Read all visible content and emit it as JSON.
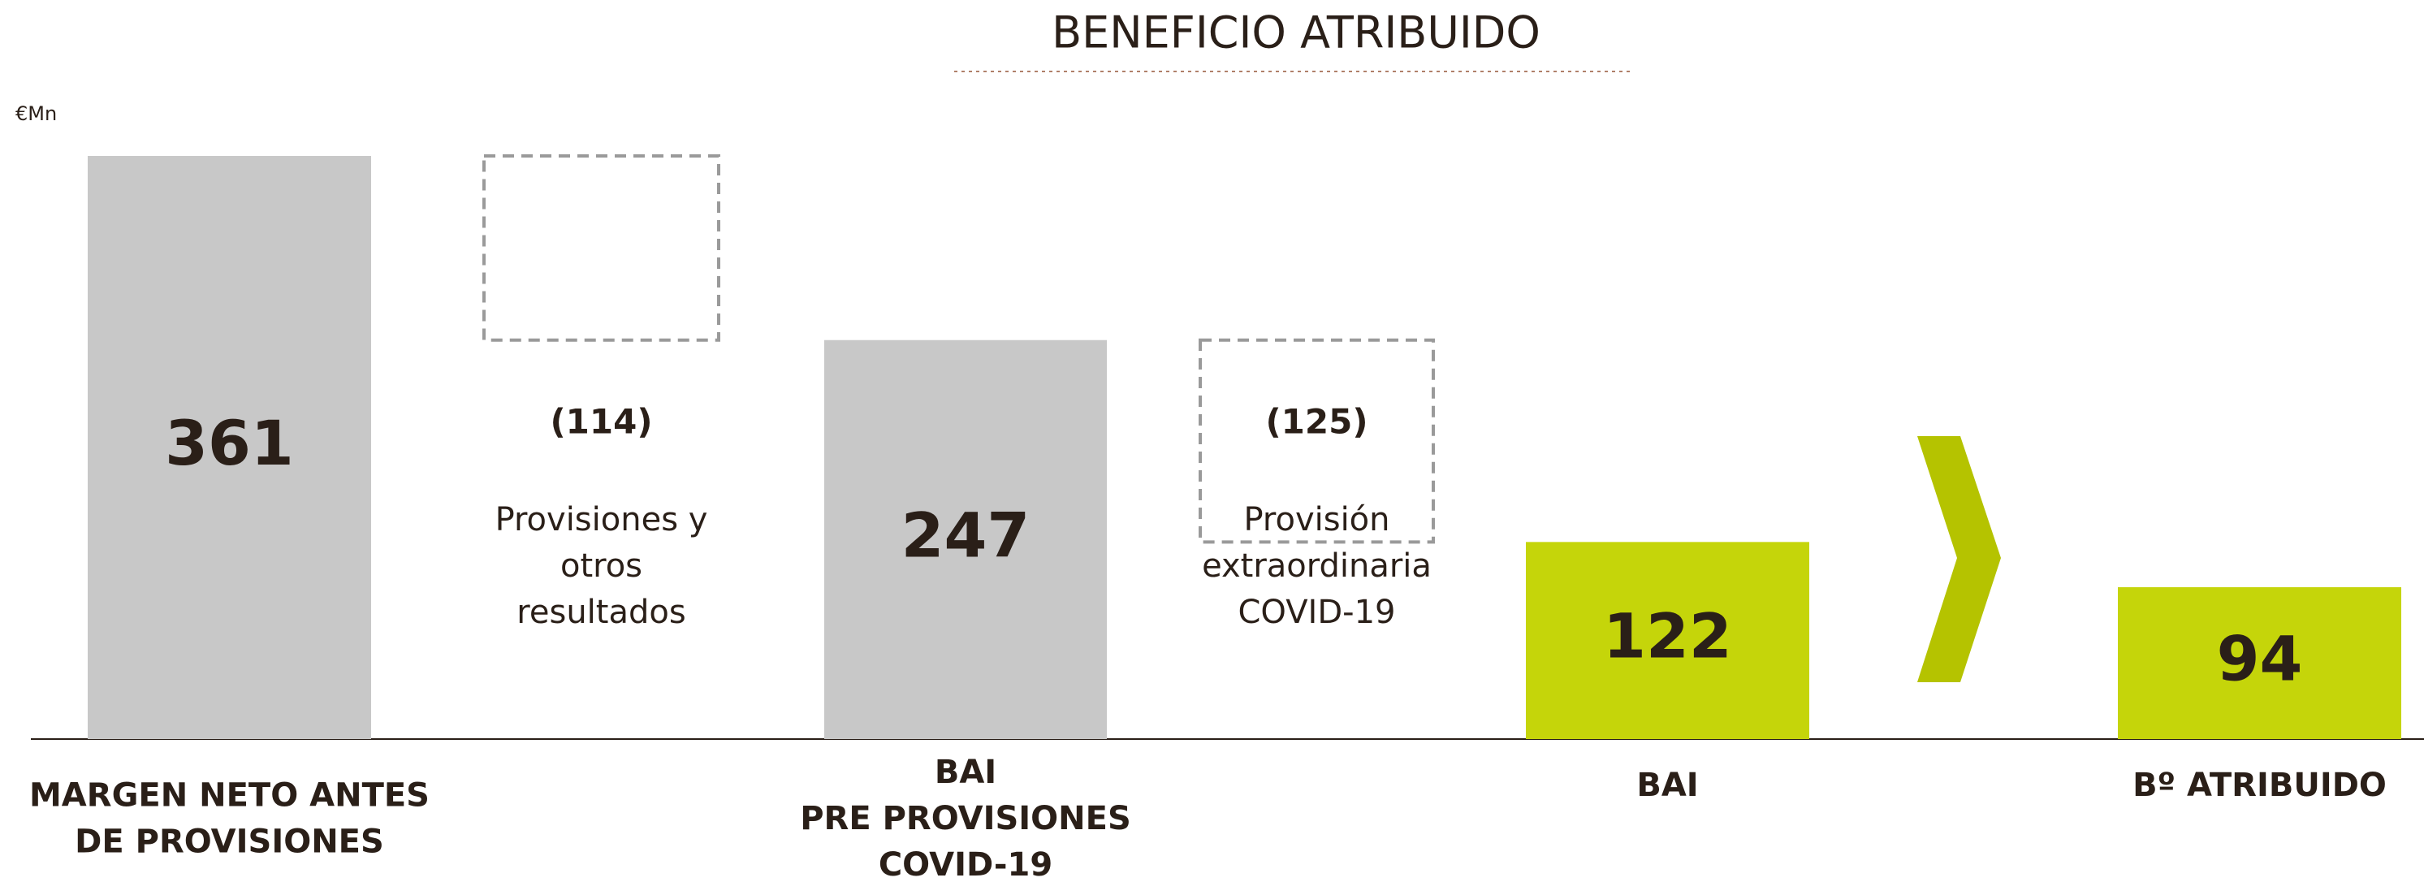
{
  "chart_data": {
    "type": "waterfall",
    "title": "BENEFICIO ATRIBUIDO",
    "unit": "€Mn",
    "categories": [
      [
        "MARGEN NETO ANTES",
        "DE PROVISIONES"
      ],
      null,
      [
        "BAI",
        "PRE PROVISIONES",
        "COVID-19"
      ],
      null,
      [
        "BAI"
      ],
      [
        "Bº ATRIBUIDO"
      ]
    ],
    "descriptions": [
      null,
      [
        "Provisiones y",
        "otros",
        "resultados"
      ],
      null,
      [
        "Provisión",
        "extraordinaria",
        "COVID-19"
      ],
      null,
      null
    ],
    "values": [
      361,
      -114,
      247,
      -125,
      122,
      94
    ],
    "value_labels": [
      "361",
      "(114)",
      "247",
      "(125)",
      "122",
      "94"
    ],
    "kinds": [
      "total",
      "delta",
      "total",
      "delta",
      "total",
      "total"
    ],
    "colors": [
      "#c8c8c8",
      "#9a9a9a",
      "#c8c8c8",
      "#9a9a9a",
      "#c5d50a",
      "#c5d50a"
    ]
  }
}
